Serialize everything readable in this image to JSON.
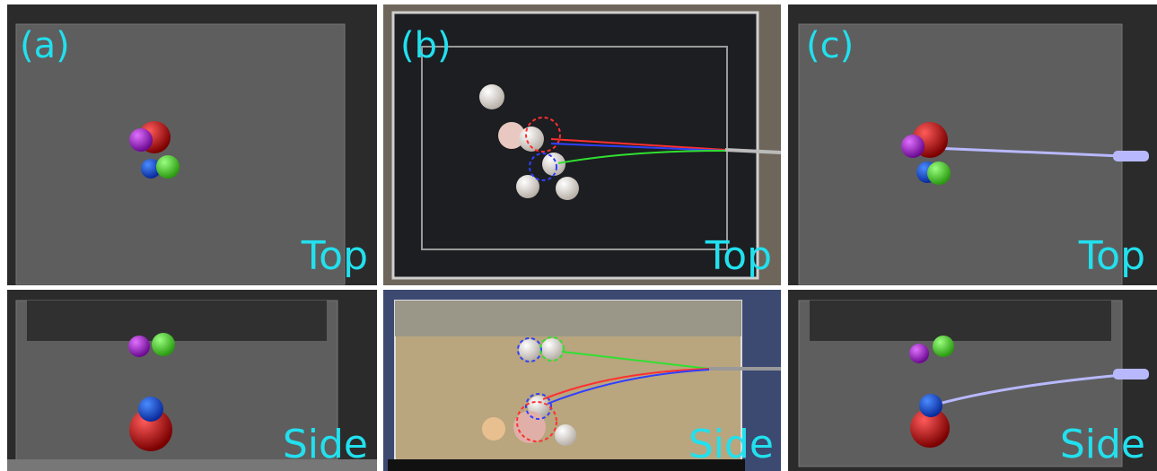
{
  "panels": [
    {
      "label": "(a)",
      "views": [
        "Top",
        "Side"
      ]
    },
    {
      "label": "(b)",
      "views": [
        "Top",
        "Side"
      ]
    },
    {
      "label": "(c)",
      "views": [
        "Top",
        "Side"
      ]
    }
  ]
}
